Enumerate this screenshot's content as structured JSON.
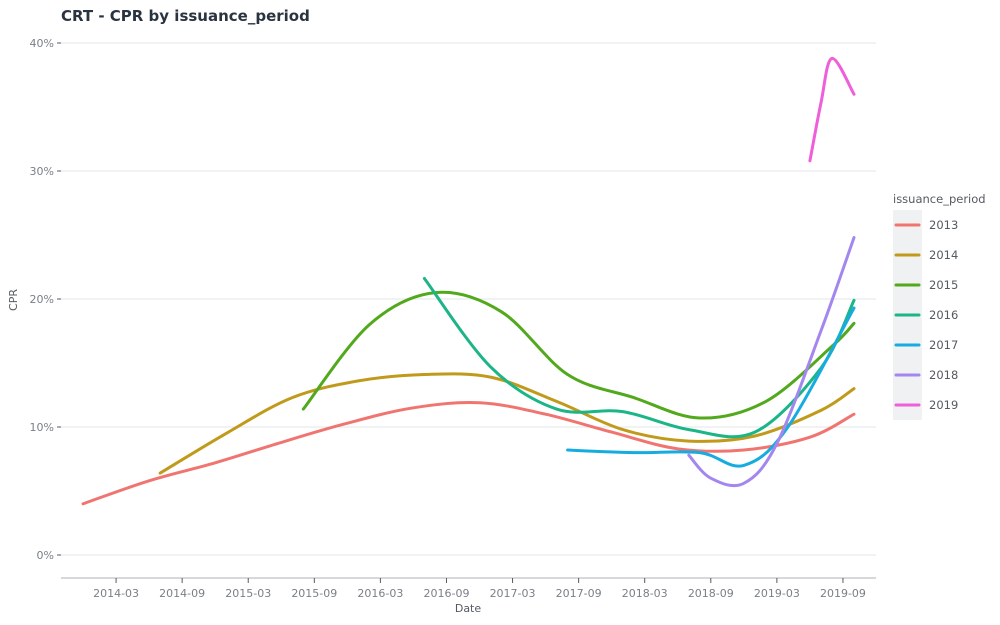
{
  "chart_data": {
    "type": "line",
    "title": "CRT - CPR by issuance_period",
    "xlabel": "Date",
    "ylabel": "CPR",
    "x_ticks": [
      "2014-03",
      "2014-09",
      "2015-03",
      "2015-09",
      "2016-03",
      "2016-09",
      "2017-03",
      "2017-09",
      "2018-03",
      "2018-09",
      "2019-03",
      "2019-09"
    ],
    "y_ticks": [
      "0%",
      "10%",
      "20%",
      "30%",
      "40%"
    ],
    "ylim": [
      0,
      40
    ],
    "xlim": [
      "2013-10",
      "2019-12"
    ],
    "grid": true,
    "legend": {
      "title": "issuance_period",
      "position": "right"
    },
    "series": [
      {
        "name": "2013",
        "color": "#F07570",
        "points": [
          [
            "2013-12",
            4.0
          ],
          [
            "2014-06",
            5.8
          ],
          [
            "2014-12",
            7.2
          ],
          [
            "2015-06",
            8.8
          ],
          [
            "2015-12",
            10.3
          ],
          [
            "2016-06",
            11.5
          ],
          [
            "2016-12",
            11.9
          ],
          [
            "2017-06",
            11.0
          ],
          [
            "2017-12",
            9.6
          ],
          [
            "2018-06",
            8.3
          ],
          [
            "2018-12",
            8.2
          ],
          [
            "2019-06",
            9.2
          ],
          [
            "2019-10",
            11.0
          ]
        ]
      },
      {
        "name": "2014",
        "color": "#C09A1A",
        "points": [
          [
            "2014-07",
            6.4
          ],
          [
            "2015-01",
            9.5
          ],
          [
            "2015-07",
            12.3
          ],
          [
            "2016-01",
            13.6
          ],
          [
            "2016-07",
            14.1
          ],
          [
            "2017-01",
            13.9
          ],
          [
            "2017-07",
            12.0
          ],
          [
            "2018-01",
            9.8
          ],
          [
            "2018-07",
            8.9
          ],
          [
            "2019-01",
            9.3
          ],
          [
            "2019-07",
            11.3
          ],
          [
            "2019-10",
            13.0
          ]
        ]
      },
      {
        "name": "2015",
        "color": "#52A91D",
        "points": [
          [
            "2015-08",
            11.4
          ],
          [
            "2016-02",
            18.0
          ],
          [
            "2016-08",
            20.5
          ],
          [
            "2017-02",
            19.0
          ],
          [
            "2017-08",
            14.1
          ],
          [
            "2018-02",
            12.3
          ],
          [
            "2018-08",
            10.7
          ],
          [
            "2019-02",
            12.0
          ],
          [
            "2019-08",
            16.3
          ],
          [
            "2019-10",
            18.1
          ]
        ]
      },
      {
        "name": "2016",
        "color": "#1CB587",
        "points": [
          [
            "2016-07",
            21.6
          ],
          [
            "2017-01",
            14.7
          ],
          [
            "2017-07",
            11.4
          ],
          [
            "2018-01",
            11.2
          ],
          [
            "2018-07",
            9.8
          ],
          [
            "2019-01",
            9.6
          ],
          [
            "2019-07",
            14.6
          ],
          [
            "2019-10",
            19.9
          ]
        ]
      },
      {
        "name": "2017",
        "color": "#16ACE0",
        "points": [
          [
            "2017-08",
            8.2
          ],
          [
            "2018-02",
            8.0
          ],
          [
            "2018-08",
            8.0
          ],
          [
            "2018-12",
            7.0
          ],
          [
            "2019-04",
            10.0
          ],
          [
            "2019-10",
            19.3
          ]
        ]
      },
      {
        "name": "2018",
        "color": "#A387EF",
        "points": [
          [
            "2018-07",
            7.8
          ],
          [
            "2018-09",
            6.0
          ],
          [
            "2018-12",
            5.6
          ],
          [
            "2019-03",
            8.7
          ],
          [
            "2019-07",
            17.5
          ],
          [
            "2019-10",
            24.8
          ]
        ]
      },
      {
        "name": "2019",
        "color": "#EE5FD9",
        "points": [
          [
            "2019-06",
            30.8
          ],
          [
            "2019-07",
            35.3
          ],
          [
            "2019-08",
            38.8
          ],
          [
            "2019-10",
            36.0
          ]
        ]
      }
    ]
  }
}
